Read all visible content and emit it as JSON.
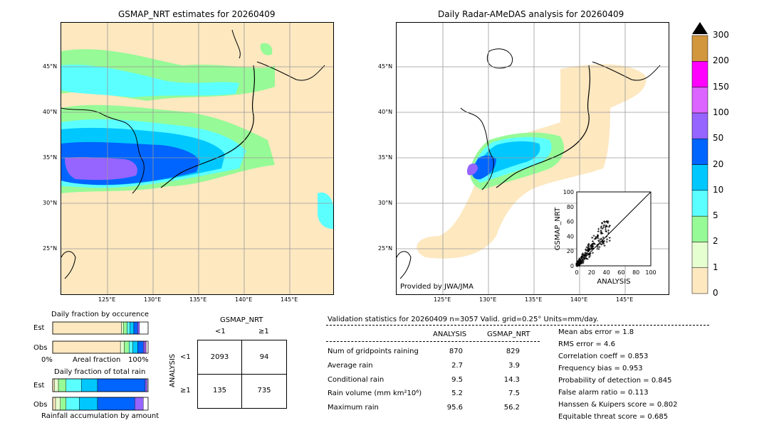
{
  "left_map": {
    "title": "GSMAP_NRT estimates for 20260409",
    "lon_labels": [
      "125°E",
      "130°E",
      "135°E",
      "140°E",
      "145°E"
    ],
    "lat_labels": [
      "45°N",
      "40°N",
      "35°N",
      "30°N",
      "25°N"
    ]
  },
  "right_map": {
    "title": "Daily Radar-AMeDAS analysis for 20260409",
    "credit": "Provided by JWA/JMA",
    "lon_labels": [
      "125°E",
      "130°E",
      "135°E",
      "140°E",
      "145°E"
    ],
    "lat_labels": [
      "45°N",
      "40°N",
      "35°N",
      "30°N",
      "25°N"
    ]
  },
  "colorbar": {
    "ticks": [
      "0",
      "1",
      "2",
      "5",
      "10",
      "20",
      "50",
      "100",
      "150",
      "200",
      "300"
    ],
    "colors": [
      "#fde8c0",
      "#e6ffd0",
      "#96fa96",
      "#5cffff",
      "#00c8ff",
      "#0064ff",
      "#9664ff",
      "#dc64ff",
      "#ff00ff",
      "#d2963c"
    ]
  },
  "chart_data": [
    {
      "type": "scatter",
      "xlabel": "ANALYSIS",
      "ylabel": "GSMAP_NRT",
      "xlim": [
        0,
        100
      ],
      "ylim": [
        0,
        100
      ],
      "x_ticks": [
        "0",
        "20",
        "40",
        "60",
        "80",
        "100"
      ],
      "y_ticks": [
        "0",
        "20",
        "40",
        "60",
        "80",
        "100"
      ]
    },
    {
      "type": "bar",
      "title": "Daily fraction by occurence",
      "categories": [
        "Est",
        "Obs"
      ],
      "xlabel": "Areal fraction",
      "x_left": "0%",
      "x_right": "100%",
      "series": [
        {
          "values": [
            0.72,
            0.71
          ]
        },
        {
          "values": [
            0.02,
            0.04
          ]
        },
        {
          "values": [
            0.04,
            0.05
          ]
        },
        {
          "values": [
            0.03,
            0.04
          ]
        },
        {
          "values": [
            0.04,
            0.05
          ]
        },
        {
          "values": [
            0.04,
            0.06
          ]
        },
        {
          "values": [
            0.02,
            0.02
          ]
        },
        {
          "values": [
            0.0,
            0.01
          ]
        }
      ]
    },
    {
      "type": "bar",
      "title": "Daily fraction of total rain",
      "categories": [
        "Est",
        "Obs"
      ],
      "xlabel": "Rainfall accumulation by amount",
      "series": [
        {
          "values": [
            0.02,
            0.03
          ]
        },
        {
          "values": [
            0.04,
            0.05
          ]
        },
        {
          "values": [
            0.08,
            0.06
          ]
        },
        {
          "values": [
            0.16,
            0.14
          ]
        },
        {
          "values": [
            0.17,
            0.19
          ]
        },
        {
          "values": [
            0.5,
            0.39
          ]
        },
        {
          "values": [
            0.02,
            0.09
          ]
        },
        {
          "values": [
            0.0,
            0.0
          ]
        }
      ]
    }
  ],
  "contingency": {
    "header": "GSMAP_NRT",
    "col_lt1": "<1",
    "col_ge1": "≥1",
    "row_label": "ANALYSIS",
    "row_lt1": "<1",
    "row_ge1": "≥1",
    "c11": "2093",
    "c12": "94",
    "c21": "135",
    "c22": "735"
  },
  "validation": {
    "header": "Validation statistics for 20260409  n=3057 Valid. grid=0.25° Units=mm/day.",
    "col_analysis": "ANALYSIS",
    "col_gsmap": "GSMAP_NRT",
    "rows": [
      {
        "name": "Num of gridpoints raining",
        "a": "870",
        "g": "829"
      },
      {
        "name": "Average rain",
        "a": "2.7",
        "g": "3.9"
      },
      {
        "name": "Conditional rain",
        "a": "9.5",
        "g": "14.3"
      },
      {
        "name": "Rain volume (mm km²10⁶)",
        "a": "5.2",
        "g": "7.5"
      },
      {
        "name": "Maximum rain",
        "a": "95.6",
        "g": "56.2"
      }
    ],
    "scores": [
      "Mean abs error =    1.8",
      "RMS error =    4.6",
      "Correlation coeff =  0.853",
      "Frequency bias =  0.953",
      "Probability of detection =  0.845",
      "False alarm ratio =  0.113",
      "Hanssen & Kuipers score =  0.802",
      "Equitable threat score =  0.685"
    ]
  }
}
